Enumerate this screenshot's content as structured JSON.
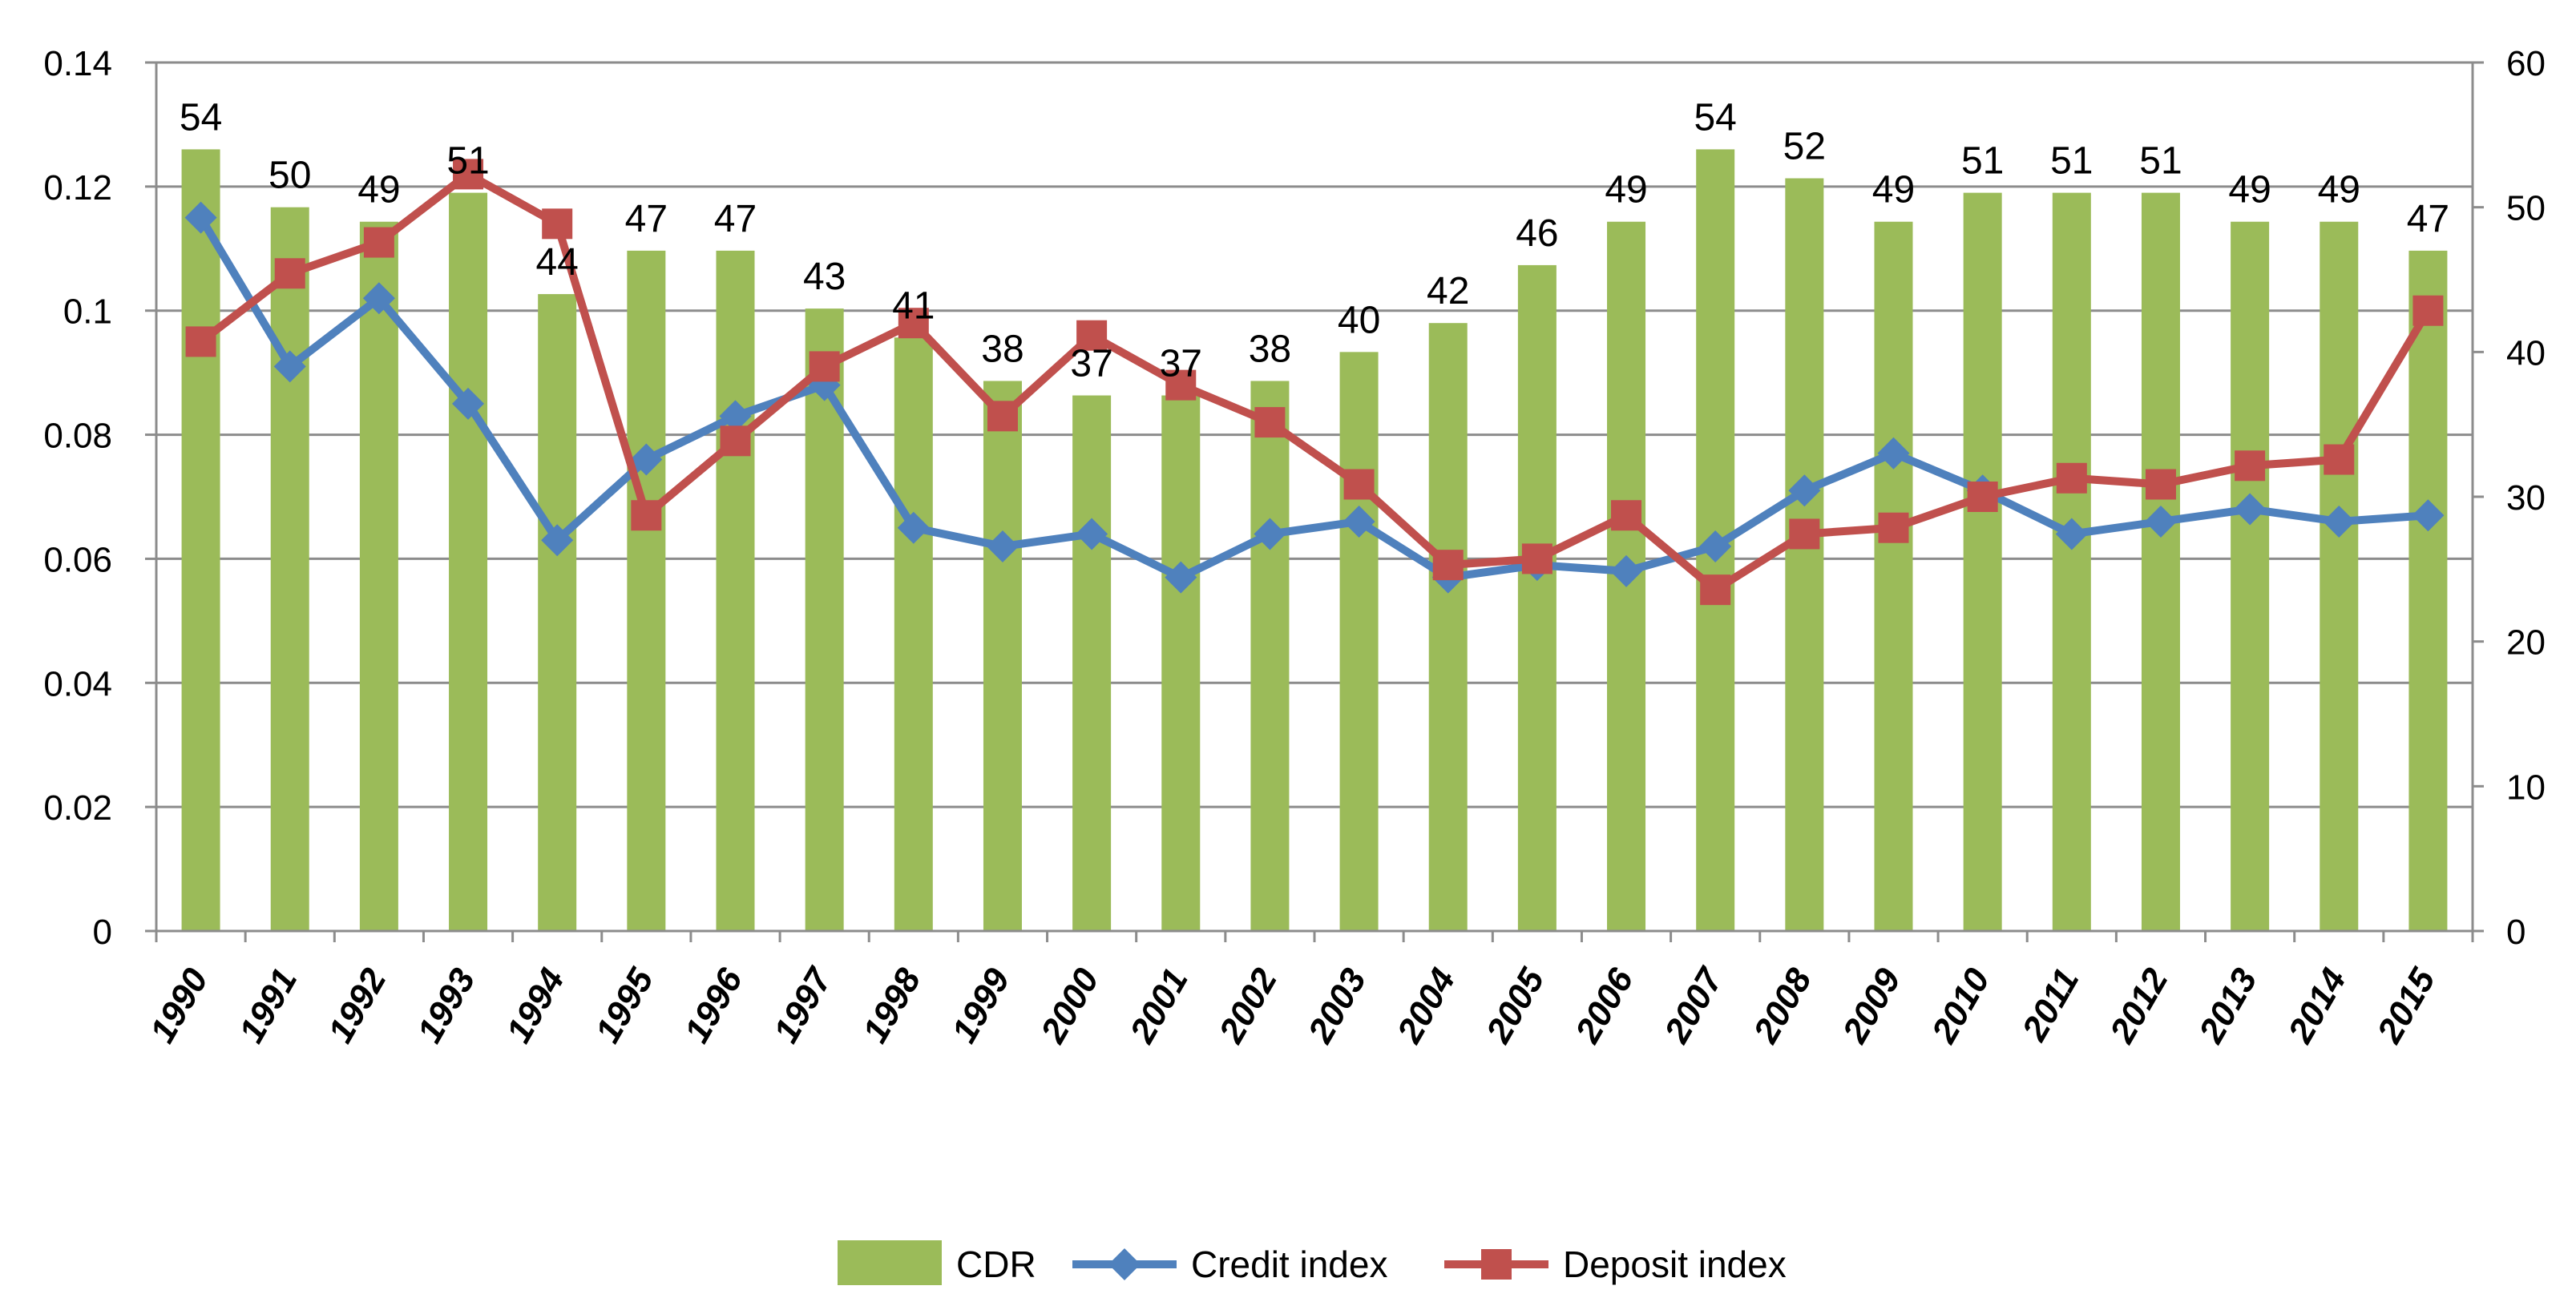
{
  "chart_data": {
    "type": "bar",
    "title": "",
    "xlabel": "",
    "ylabel": "",
    "y2label": "",
    "grid": true,
    "legend_position": "bottom",
    "categories": [
      "1990",
      "1991",
      "1992",
      "1993",
      "1994",
      "1995",
      "1996",
      "1997",
      "1998",
      "1999",
      "2000",
      "2001",
      "2002",
      "2003",
      "2004",
      "2005",
      "2006",
      "2007",
      "2008",
      "2009",
      "2010",
      "2011",
      "2012",
      "2013",
      "2014",
      "2015"
    ],
    "ylim": [
      0,
      0.14
    ],
    "y_ticks": [
      "0",
      "0.02",
      "0.04",
      "0.06",
      "0.08",
      "0.1",
      "0.12",
      "0.14"
    ],
    "y2lim": [
      0,
      60
    ],
    "y2_ticks": [
      "0",
      "10",
      "20",
      "30",
      "40",
      "50",
      "60"
    ],
    "series": [
      {
        "name": "CDR",
        "type": "bar",
        "axis": "right",
        "color": "#9bbb59",
        "values": [
          54,
          50,
          49,
          51,
          44,
          47,
          47,
          43,
          41,
          38,
          37,
          37,
          38,
          40,
          42,
          46,
          49,
          54,
          52,
          49,
          51,
          51,
          51,
          49,
          49,
          47
        ],
        "data_labels": [
          "54",
          "50",
          "49",
          "51",
          "44",
          "47",
          "47",
          "43",
          "41",
          "38",
          "37",
          "37",
          "38",
          "40",
          "42",
          "46",
          "49",
          "54",
          "52",
          "49",
          "51",
          "51",
          "51",
          "49",
          "49",
          "47"
        ]
      },
      {
        "name": "Credit index",
        "type": "line",
        "axis": "left",
        "color": "#4f81bd",
        "marker": "diamond",
        "values": [
          0.115,
          0.091,
          0.102,
          0.085,
          0.063,
          0.076,
          0.083,
          0.088,
          0.065,
          0.062,
          0.064,
          0.057,
          0.064,
          0.066,
          0.057,
          0.059,
          0.058,
          0.062,
          0.071,
          0.077,
          0.071,
          0.064,
          0.066,
          0.068,
          0.066,
          0.067
        ]
      },
      {
        "name": "Deposit index",
        "type": "line",
        "axis": "left",
        "color": "#c0504d",
        "marker": "square",
        "values": [
          0.095,
          0.106,
          0.111,
          0.122,
          0.114,
          0.067,
          0.079,
          0.091,
          0.098,
          0.083,
          0.096,
          0.088,
          0.082,
          0.072,
          0.059,
          0.06,
          0.067,
          0.055,
          0.064,
          0.065,
          0.07,
          0.073,
          0.072,
          0.075,
          0.076,
          0.1
        ]
      }
    ]
  }
}
